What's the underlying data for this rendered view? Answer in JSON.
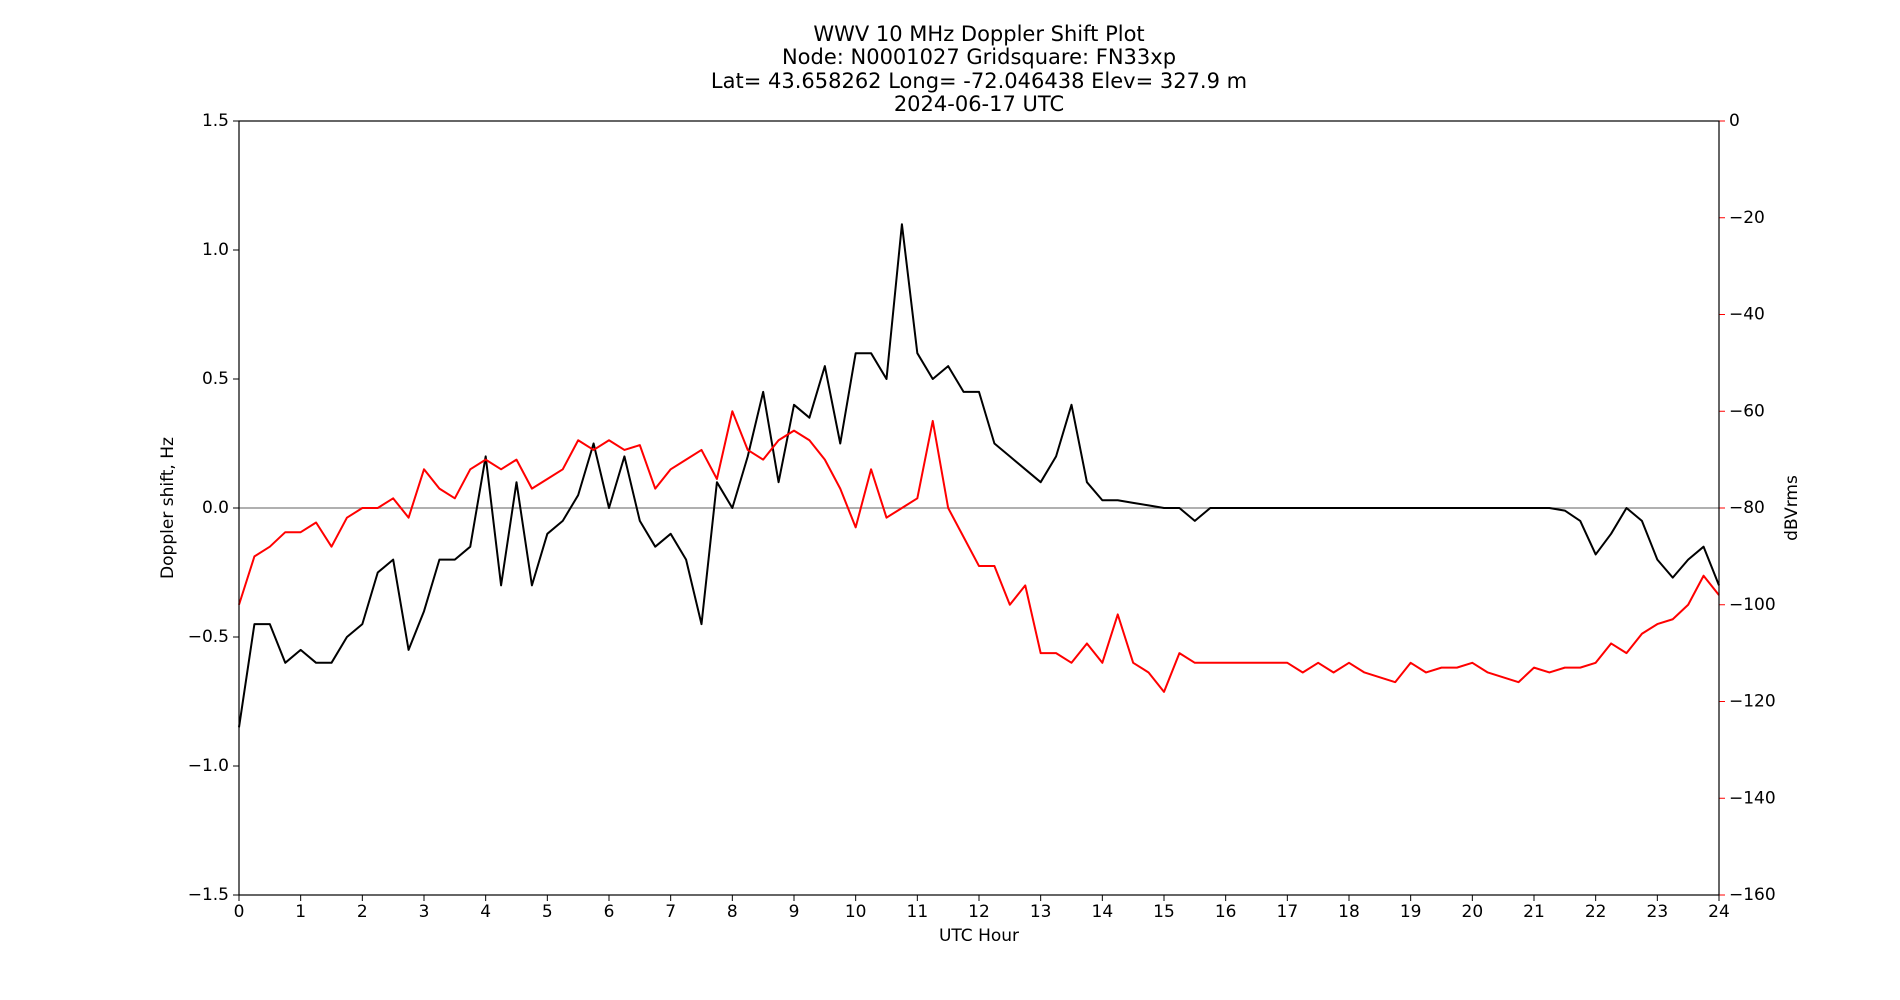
{
  "chart_data": {
    "type": "line",
    "title": [
      "WWV 10 MHz Doppler Shift Plot",
      "Node:  N0001027     Gridsquare:  FN33xp",
      "Lat=   43.658262    Long= -72.046438    Elev= 327.9 m",
      "2024-06-17  UTC"
    ],
    "x_label": "UTC Hour",
    "y_label": "Doppler shift, Hz",
    "y2_label": "dBVrms",
    "x": [
      0,
      0.25,
      0.5,
      0.75,
      1,
      1.25,
      1.5,
      1.75,
      2,
      2.25,
      2.5,
      2.75,
      3,
      3.25,
      3.5,
      3.75,
      4,
      4.25,
      4.5,
      4.75,
      5,
      5.25,
      5.5,
      5.75,
      6,
      6.25,
      6.5,
      6.75,
      7,
      7.25,
      7.5,
      7.75,
      8,
      8.25,
      8.5,
      8.75,
      9,
      9.25,
      9.5,
      9.75,
      10,
      10.25,
      10.5,
      10.75,
      11,
      11.25,
      11.5,
      11.75,
      12,
      12.25,
      12.5,
      12.75,
      13,
      13.25,
      13.5,
      13.75,
      14,
      14.25,
      14.5,
      14.75,
      15,
      15.25,
      15.5,
      15.75,
      16,
      16.25,
      16.5,
      16.75,
      17,
      17.25,
      17.5,
      17.75,
      18,
      18.25,
      18.5,
      18.75,
      19,
      19.25,
      19.5,
      19.75,
      20,
      20.25,
      20.5,
      20.75,
      21,
      21.25,
      21.5,
      21.75,
      22,
      22.25,
      22.5,
      22.75,
      23,
      23.25,
      23.5,
      23.75,
      24
    ],
    "series": [
      {
        "name": "Doppler shift",
        "color": "#000000",
        "axis": "y",
        "values": [
          -0.85,
          -0.45,
          -0.45,
          -0.6,
          -0.55,
          -0.6,
          -0.6,
          -0.5,
          -0.45,
          -0.25,
          -0.2,
          -0.55,
          -0.4,
          -0.2,
          -0.2,
          -0.15,
          0.2,
          -0.3,
          0.1,
          -0.3,
          -0.1,
          -0.05,
          0.05,
          0.25,
          0,
          0.2,
          -0.05,
          -0.15,
          -0.1,
          -0.2,
          -0.45,
          0.1,
          0,
          0.2,
          0.45,
          0.1,
          0.4,
          0.35,
          0.55,
          0.25,
          0.6,
          0.6,
          0.5,
          1.1,
          0.6,
          0.5,
          0.55,
          0.45,
          0.45,
          0.25,
          0.2,
          0.15,
          0.1,
          0.2,
          0.4,
          0.1,
          0.03,
          0.03,
          0.02,
          0.01,
          0,
          0,
          -0.05,
          0,
          0,
          0,
          0,
          0,
          0,
          0,
          0,
          0,
          0,
          0,
          0,
          0,
          0,
          0,
          0,
          0,
          0,
          0,
          0,
          0,
          0,
          0,
          -0.01,
          -0.05,
          -0.18,
          -0.1,
          0,
          -0.05,
          -0.2,
          -0.27,
          -0.2,
          -0.15,
          -0.3
        ]
      },
      {
        "name": "dBVrms",
        "color": "#ff0000",
        "axis": "y2",
        "values": [
          -100,
          -90,
          -88,
          -85,
          -85,
          -83,
          -88,
          -82,
          -80,
          -80,
          -78,
          -82,
          -72,
          -76,
          -78,
          -72,
          -70,
          -72,
          -70,
          -76,
          -74,
          -72,
          -66,
          -68,
          -66,
          -68,
          -67,
          -76,
          -72,
          -70,
          -68,
          -74,
          -60,
          -68,
          -70,
          -66,
          -64,
          -66,
          -70,
          -76,
          -84,
          -72,
          -82,
          -80,
          -78,
          -62,
          -80,
          -86,
          -92,
          -92,
          -100,
          -96,
          -110,
          -110,
          -112,
          -108,
          -112,
          -102,
          -112,
          -114,
          -118,
          -110,
          -112,
          -112,
          -112,
          -112,
          -112,
          -112,
          -112,
          -114,
          -112,
          -114,
          -112,
          -114,
          -115,
          -116,
          -112,
          -114,
          -113,
          -113,
          -112,
          -114,
          -115,
          -116,
          -113,
          -114,
          -113,
          -113,
          -112,
          -108,
          -110,
          -106,
          -104,
          -103,
          -100,
          -94,
          -98
        ]
      }
    ],
    "xlim": [
      0,
      24
    ],
    "xticks": [
      0,
      1,
      2,
      3,
      4,
      5,
      6,
      7,
      8,
      9,
      10,
      11,
      12,
      13,
      14,
      15,
      16,
      17,
      18,
      19,
      20,
      21,
      22,
      23,
      24
    ],
    "ylim": [
      -1.5,
      1.5
    ],
    "yticks": [
      {
        "value": -1.5,
        "label": "−1.5"
      },
      {
        "value": -1.0,
        "label": "−1.0"
      },
      {
        "value": -0.5,
        "label": "−0.5"
      },
      {
        "value": 0,
        "label": "0.0"
      },
      0.5,
      {
        "value": 1.0,
        "label": "1.0"
      },
      1.5
    ],
    "y2lim": [
      -160,
      0
    ],
    "y2ticks": [
      {
        "value": -160,
        "label": "−160"
      },
      {
        "value": -140,
        "label": "−140"
      },
      {
        "value": -120,
        "label": "−120"
      },
      {
        "value": -100,
        "label": "−100"
      },
      {
        "value": -80,
        "label": "−80"
      },
      {
        "value": -60,
        "label": "−60"
      },
      {
        "value": -40,
        "label": "−40"
      },
      {
        "value": -20,
        "label": "−20"
      },
      0
    ],
    "y2_color": "#ff0000",
    "hlines": [
      0
    ],
    "hline_color": "#808080",
    "grid": false
  }
}
